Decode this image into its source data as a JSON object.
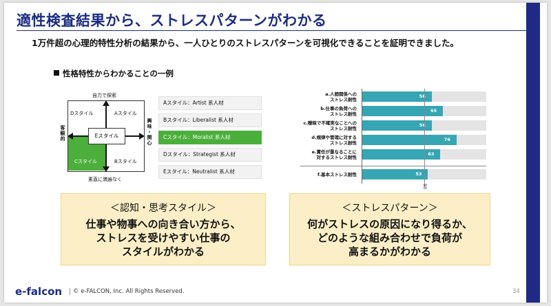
{
  "title": "適性検査結果から、ストレスパターンがわかる",
  "subtitle": "1万件超の心理的特性分析の結果から、一人ひとりのストレスパターンを可視化できることを証明できました。",
  "section_label": "性格特性からわかることの一例",
  "quadrant": {
    "top": "自力で探索",
    "bottom": "素直に満遍なく",
    "left": "客観的",
    "right": "興味・関心",
    "d_label": "Dスタイル",
    "a_label": "Aスタイル",
    "c_label": "Cスタイル",
    "b_label": "Bスタイル",
    "e_label": "Eスタイル"
  },
  "styles": [
    {
      "label": "Aスタイル：Artist 系人材",
      "highlight": false
    },
    {
      "label": "Bスタイル：Liberalist 系人材",
      "highlight": false
    },
    {
      "label": "Cスタイル：Moralist 系人材",
      "highlight": true
    },
    {
      "label": "Dスタイル：Strategist 系人材",
      "highlight": false
    },
    {
      "label": "Eスタイル：Neutralist 系人材",
      "highlight": false
    }
  ],
  "chart_data": {
    "type": "bar",
    "orientation": "horizontal",
    "categories": [
      [
        "a.人間関係への",
        "ストレス耐性"
      ],
      [
        "b.仕事の負荷への",
        "ストレス耐性"
      ],
      [
        "c.曖昧で不確実なことへの",
        "ストレス耐性"
      ],
      [
        "d.規律や管理に対する",
        "ストレス耐性"
      ],
      [
        "e.責任が重なることに",
        "対するストレス耐性"
      ],
      [
        "f.基本ストレス耐性"
      ]
    ],
    "values": [
      56,
      65,
      56,
      76,
      63,
      53
    ],
    "xlim": [
      0,
      100
    ],
    "reference_line": 50,
    "tick_label": "50",
    "bar_color": "#36a6b4"
  },
  "callouts": [
    {
      "head": "＜認知・思考スタイル＞",
      "lines": [
        "仕事や物事への向き合い方から、",
        "ストレスを受けやすい仕事の",
        "スタイルがわかる"
      ]
    },
    {
      "head": "＜ストレスパターン＞",
      "lines": [
        "何がストレスの原因になり得るか、",
        "どのような組み合わせで負荷が",
        "高まるかがわかる"
      ]
    }
  ],
  "footer": {
    "logo": "e-falcon",
    "copyright": "© e-FALCON, Inc. All Rights Reserved.",
    "page": "34"
  }
}
